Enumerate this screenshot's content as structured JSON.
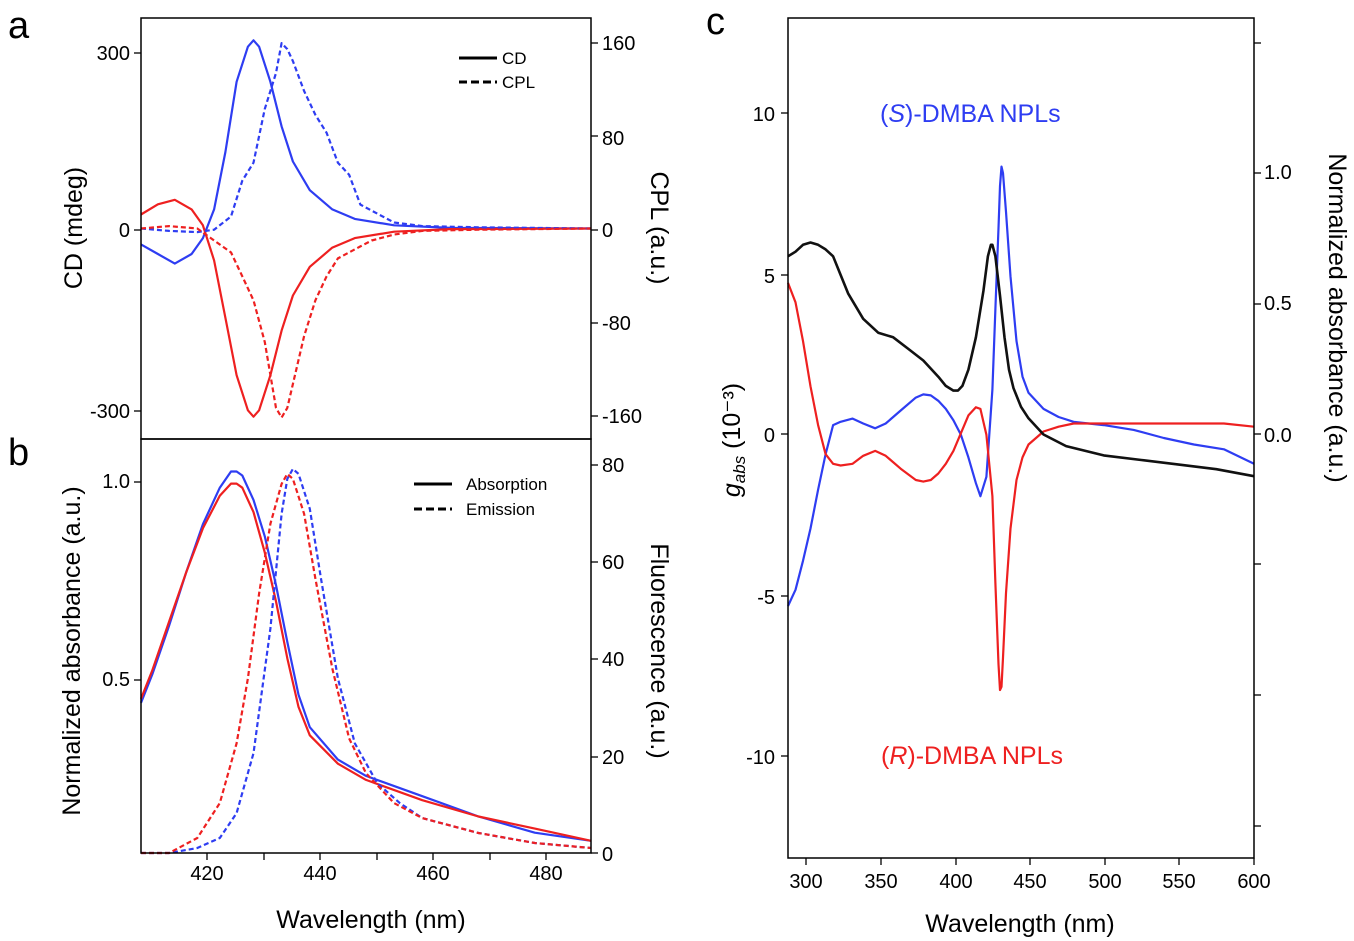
{
  "colors": {
    "blue": "#2e3df2",
    "red": "#ee2020",
    "black": "#111111",
    "frame": "#000000"
  },
  "panels": {
    "a": {
      "letter": "a",
      "ylabel_left": "CD (mdeg)",
      "ylabel_right": "CPL (a.u.)",
      "left_ticks": [
        "300",
        "0",
        "-300"
      ],
      "right_ticks": [
        "160",
        "80",
        "0",
        "-80",
        "-160"
      ],
      "legend": [
        "CD",
        "CPL"
      ]
    },
    "b": {
      "letter": "b",
      "ylabel_left": "Normalized absorbance (a.u.)",
      "ylabel_right": "Fluorescence (a.u.)",
      "left_ticks": [
        "1.0",
        "0.5"
      ],
      "right_ticks": [
        "80",
        "60",
        "40",
        "20",
        "0"
      ],
      "x_ticks": [
        "420",
        "440",
        "460",
        "480"
      ],
      "xlabel": "Wavelength (nm)",
      "legend": [
        "Absorption",
        "Emission"
      ]
    },
    "c": {
      "letter": "c",
      "ylabel_left_main": "g",
      "ylabel_left_sub": "abs",
      "ylabel_left_unit": " (10⁻³)",
      "ylabel_right": "Normalized absorbance (a.u.)",
      "left_ticks": [
        "10",
        "5",
        "0",
        "-5",
        "-10"
      ],
      "right_ticks": [
        "1.0",
        "0.5",
        "0.0"
      ],
      "x_ticks": [
        "300",
        "350",
        "400",
        "450",
        "500",
        "550",
        "600"
      ],
      "xlabel": "Wavelength (nm)",
      "ann_s_open": "(",
      "ann_s_italic": "S",
      "ann_s_close": ")-DMBA NPLs",
      "ann_r_open": "(",
      "ann_r_italic": "R",
      "ann_r_close": ")-DMBA NPLs"
    }
  },
  "chart_data": [
    {
      "panel": "a",
      "type": "line",
      "xlim": [
        410,
        490
      ],
      "ylim_left": [
        -330,
        330
      ],
      "ylim_right": [
        -176,
        176
      ],
      "series": [
        {
          "name": "CD",
          "color": "blue",
          "dash": false,
          "axis": "left",
          "x": [
            410,
            413,
            416,
            419,
            421,
            423,
            425,
            427,
            429,
            430,
            431,
            433,
            435,
            437,
            440,
            444,
            448,
            455,
            465,
            490
          ],
          "y": [
            -25,
            -40,
            -55,
            -40,
            -15,
            30,
            120,
            230,
            285,
            295,
            285,
            230,
            160,
            105,
            60,
            30,
            15,
            5,
            1,
            0
          ]
        },
        {
          "name": "CD",
          "color": "red",
          "dash": false,
          "axis": "left",
          "x": [
            410,
            413,
            416,
            419,
            421,
            423,
            425,
            427,
            429,
            430,
            431,
            433,
            435,
            437,
            440,
            444,
            448,
            455,
            465,
            490
          ],
          "y": [
            22,
            38,
            45,
            30,
            5,
            -50,
            -140,
            -230,
            -285,
            -295,
            -285,
            -230,
            -160,
            -105,
            -60,
            -30,
            -15,
            -5,
            -1,
            0
          ]
        },
        {
          "name": "CPL",
          "color": "blue",
          "dash": true,
          "axis": "right",
          "x": [
            410,
            415,
            420,
            423,
            426,
            428,
            430,
            432,
            434,
            435,
            436,
            437,
            439,
            441,
            443,
            445,
            447,
            449,
            451,
            455,
            460,
            470,
            490
          ],
          "y": [
            0,
            -2,
            -3,
            -1,
            10,
            40,
            55,
            100,
            130,
            155,
            150,
            140,
            115,
            95,
            80,
            55,
            45,
            20,
            15,
            5,
            2,
            1,
            0
          ]
        },
        {
          "name": "CPL",
          "color": "red",
          "dash": true,
          "axis": "right",
          "x": [
            410,
            415,
            420,
            423,
            426,
            428,
            430,
            432,
            434,
            435,
            436,
            437,
            439,
            441,
            443,
            445,
            447,
            449,
            451,
            455,
            460,
            470,
            490
          ],
          "y": [
            0,
            2,
            0,
            -10,
            -20,
            -40,
            -60,
            -95,
            -150,
            -158,
            -150,
            -130,
            -90,
            -60,
            -40,
            -25,
            -20,
            -15,
            -10,
            -5,
            -2,
            -1,
            0
          ]
        }
      ]
    },
    {
      "panel": "b",
      "type": "line",
      "xlabel": "Wavelength (nm)",
      "xlim": [
        410,
        490
      ],
      "ylim_left": [
        0.06,
        1.08
      ],
      "ylim_right": [
        0,
        83
      ],
      "series": [
        {
          "name": "Absorption",
          "color": "blue",
          "dash": false,
          "axis": "left",
          "x": [
            410,
            412,
            415,
            418,
            421,
            424,
            426,
            427,
            428,
            430,
            432,
            434,
            436,
            438,
            440,
            445,
            450,
            460,
            470,
            480,
            490
          ],
          "y": [
            0.43,
            0.5,
            0.62,
            0.75,
            0.87,
            0.96,
            1.0,
            1.0,
            0.99,
            0.93,
            0.84,
            0.72,
            0.58,
            0.45,
            0.37,
            0.29,
            0.25,
            0.2,
            0.15,
            0.11,
            0.09
          ]
        },
        {
          "name": "Absorption",
          "color": "red",
          "dash": false,
          "axis": "left",
          "x": [
            410,
            412,
            415,
            418,
            421,
            424,
            426,
            427,
            428,
            430,
            432,
            434,
            436,
            438,
            440,
            445,
            450,
            460,
            470,
            480,
            490
          ],
          "y": [
            0.44,
            0.51,
            0.63,
            0.75,
            0.86,
            0.94,
            0.97,
            0.97,
            0.96,
            0.9,
            0.8,
            0.68,
            0.54,
            0.42,
            0.35,
            0.28,
            0.24,
            0.19,
            0.15,
            0.12,
            0.09
          ]
        },
        {
          "name": "Emission",
          "color": "blue",
          "dash": true,
          "axis": "right",
          "x": [
            410,
            415,
            420,
            424,
            427,
            430,
            433,
            435,
            436,
            437,
            438,
            440,
            442,
            445,
            448,
            452,
            456,
            460,
            470,
            480,
            490
          ],
          "y": [
            0,
            0,
            1,
            3,
            8,
            20,
            45,
            68,
            75,
            77,
            76,
            69,
            55,
            35,
            22,
            14,
            10,
            7,
            4,
            2,
            1
          ]
        },
        {
          "name": "Emission",
          "color": "red",
          "dash": true,
          "axis": "right",
          "x": [
            410,
            415,
            420,
            424,
            427,
            429,
            431,
            433,
            435,
            436,
            437,
            439,
            441,
            444,
            447,
            450,
            455,
            460,
            470,
            480,
            490
          ],
          "y": [
            0,
            0,
            3,
            10,
            22,
            35,
            52,
            66,
            74,
            76,
            75,
            68,
            55,
            37,
            23,
            16,
            10,
            7,
            4,
            2,
            1
          ]
        }
      ]
    },
    {
      "panel": "c",
      "type": "line",
      "xlabel": "Wavelength (nm)",
      "xlim": [
        290,
        600
      ],
      "ylim_left": [
        -13,
        13
      ],
      "ylim_right": [
        -1.65,
        1.98
      ],
      "series": [
        {
          "color": "blue",
          "dash": false,
          "axis": "left",
          "x": [
            290,
            295,
            300,
            305,
            310,
            315,
            320,
            325,
            333,
            340,
            348,
            355,
            365,
            375,
            380,
            385,
            390,
            395,
            400,
            405,
            410,
            415,
            418,
            422,
            426,
            428,
            430,
            431,
            432,
            433,
            435,
            438,
            442,
            446,
            450,
            460,
            470,
            480,
            490,
            500,
            520,
            540,
            560,
            580,
            600
          ],
          "y": [
            -5.2,
            -4.7,
            -3.8,
            -2.8,
            -1.6,
            -0.5,
            0.4,
            0.5,
            0.6,
            0.45,
            0.3,
            0.45,
            0.85,
            1.25,
            1.35,
            1.32,
            1.15,
            0.9,
            0.55,
            0.1,
            -0.6,
            -1.4,
            -1.8,
            -1.2,
            1.5,
            4.0,
            6.5,
            7.8,
            8.4,
            8.2,
            7.0,
            5.0,
            3.0,
            1.9,
            1.4,
            0.9,
            0.65,
            0.5,
            0.45,
            0.4,
            0.25,
            0.0,
            -0.2,
            -0.35,
            -0.8
          ]
        },
        {
          "color": "red",
          "dash": false,
          "axis": "left",
          "x": [
            290,
            295,
            300,
            305,
            310,
            315,
            320,
            325,
            333,
            340,
            348,
            355,
            365,
            375,
            380,
            385,
            390,
            395,
            400,
            405,
            410,
            415,
            418,
            422,
            426,
            428,
            430,
            431,
            432,
            433,
            435,
            438,
            442,
            446,
            450,
            460,
            470,
            480,
            490,
            500,
            520,
            540,
            560,
            580,
            600
          ],
          "y": [
            4.8,
            4.2,
            3.0,
            1.6,
            0.4,
            -0.5,
            -0.8,
            -0.85,
            -0.8,
            -0.55,
            -0.4,
            -0.55,
            -0.95,
            -1.3,
            -1.35,
            -1.3,
            -1.1,
            -0.8,
            -0.4,
            0.15,
            0.7,
            0.95,
            0.9,
            0.1,
            -1.8,
            -4.5,
            -7.0,
            -7.8,
            -7.7,
            -6.8,
            -4.8,
            -2.8,
            -1.3,
            -0.6,
            -0.2,
            0.2,
            0.35,
            0.45,
            0.45,
            0.45,
            0.45,
            0.45,
            0.45,
            0.45,
            0.35
          ]
        },
        {
          "color": "black",
          "dash": false,
          "axis": "right",
          "x": [
            290,
            295,
            300,
            305,
            310,
            315,
            320,
            325,
            330,
            340,
            350,
            360,
            370,
            380,
            390,
            395,
            400,
            403,
            406,
            410,
            415,
            420,
            423,
            425,
            426,
            428,
            431,
            434,
            437,
            440,
            445,
            450,
            460,
            475,
            500,
            525,
            550,
            575,
            600
          ],
          "y": [
            0.95,
            0.97,
            1.0,
            1.01,
            1.0,
            0.98,
            0.95,
            0.87,
            0.79,
            0.68,
            0.62,
            0.6,
            0.55,
            0.5,
            0.43,
            0.39,
            0.37,
            0.37,
            0.39,
            0.46,
            0.6,
            0.8,
            0.95,
            1.0,
            1.0,
            0.95,
            0.78,
            0.6,
            0.46,
            0.38,
            0.3,
            0.25,
            0.18,
            0.13,
            0.09,
            0.07,
            0.05,
            0.03,
            0.0
          ]
        }
      ]
    }
  ]
}
